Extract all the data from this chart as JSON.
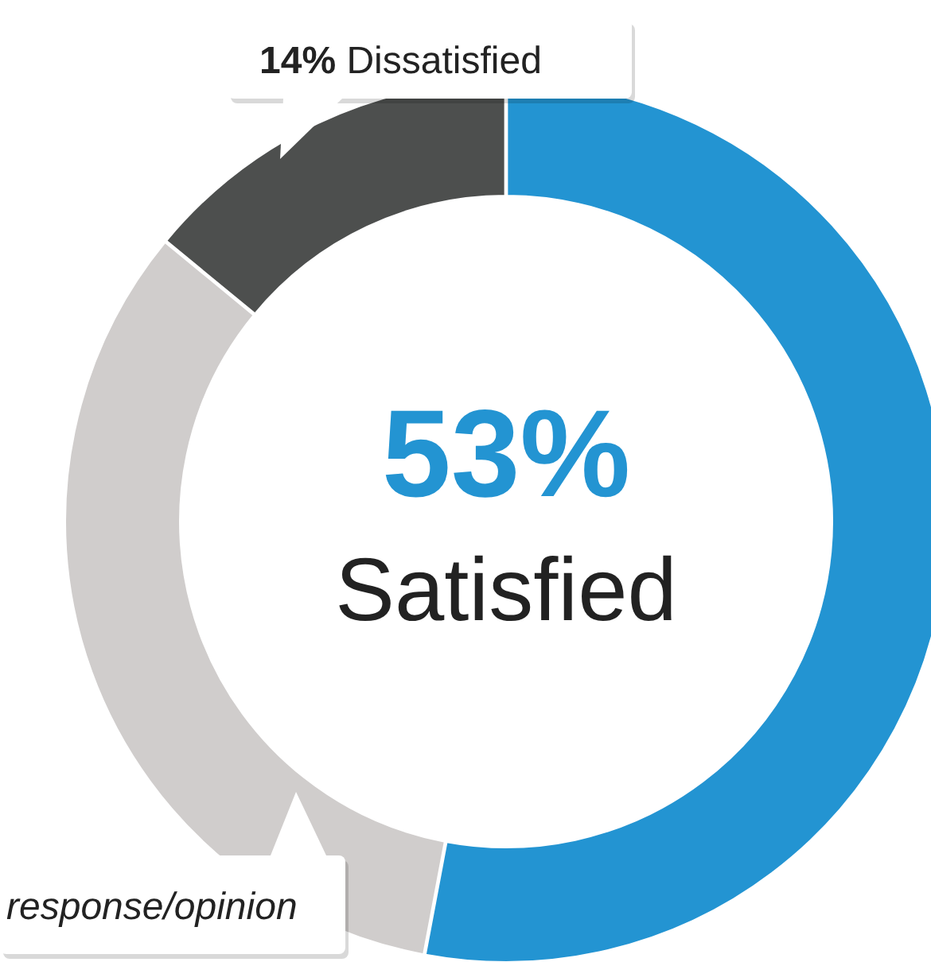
{
  "chart_data": {
    "type": "donut",
    "categories": [
      "Satisfied",
      "response/opinion",
      "Dissatisfied"
    ],
    "values": [
      53,
      33,
      14
    ],
    "colors": [
      "#2394d2",
      "#d0cdcc",
      "#4d4f4e"
    ],
    "value_labels": [
      "53%",
      null,
      "14%"
    ]
  }
}
